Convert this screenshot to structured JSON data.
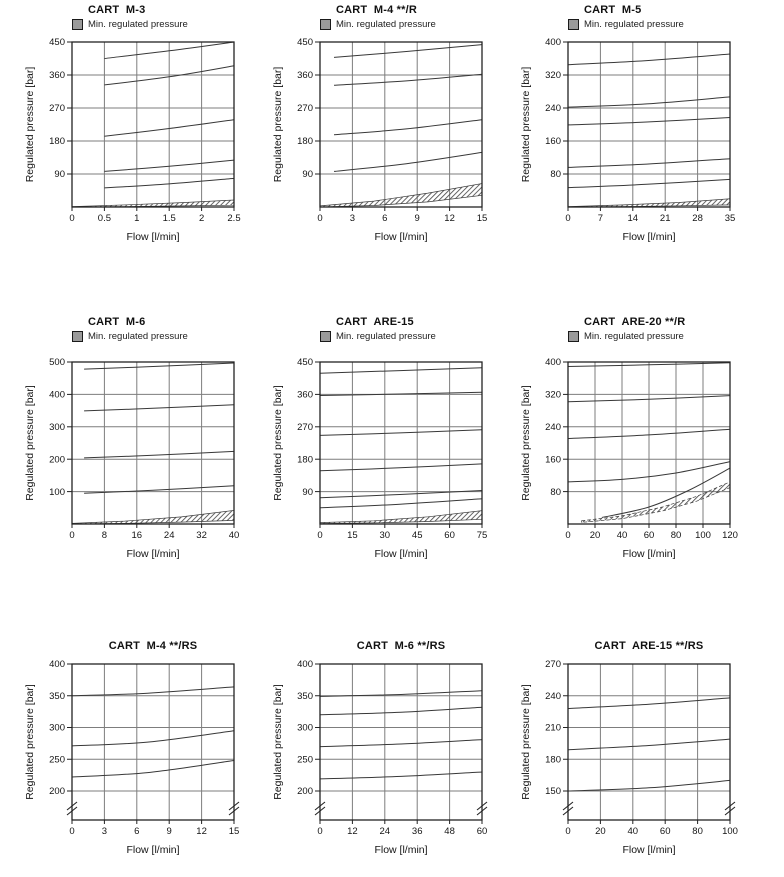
{
  "legend_swatch_color": "#9a9a9a",
  "axis_color": "#222222",
  "grid_color": "#7d7d7d",
  "curve_color": "#383838",
  "chart_data": [
    {
      "type": "line",
      "title": "CART  M-3",
      "legend": "Min. regulated pressure",
      "xlabel": "Flow [l/min]",
      "ylabel": "Regulated pressure [bar]",
      "xlim": [
        0,
        2.5
      ],
      "ylim": [
        0,
        450
      ],
      "x_ticks": [
        0,
        0.5,
        1,
        1.5,
        2,
        2.5
      ],
      "x_tick_labels": [
        "0",
        "0.5",
        "1",
        "1.5",
        "2",
        "2.5"
      ],
      "y_ticks": [
        90,
        180,
        270,
        360,
        450
      ],
      "grid": true,
      "axis_break": false,
      "curves": [
        {
          "x": [
            0.5,
            1.5,
            2.5
          ],
          "y": [
            405,
            426,
            450
          ]
        },
        {
          "x": [
            0.5,
            1.5,
            2.5
          ],
          "y": [
            333,
            355,
            385
          ]
        },
        {
          "x": [
            0.5,
            1.5,
            2.5
          ],
          "y": [
            193,
            214,
            238
          ]
        },
        {
          "x": [
            0.5,
            1.5,
            2.5
          ],
          "y": [
            97,
            111,
            128
          ]
        },
        {
          "x": [
            0.5,
            1.5,
            2.5
          ],
          "y": [
            52,
            63,
            78
          ]
        }
      ],
      "min_band": {
        "x": [
          0,
          0.85,
          1.7,
          2.5
        ],
        "top": [
          1,
          6,
          12,
          19
        ],
        "bottom": [
          0,
          1,
          3,
          5
        ],
        "dashed": false
      }
    },
    {
      "type": "line",
      "title": "CART  M-4 **/R",
      "legend": "Min. regulated pressure",
      "xlabel": "Flow [l/min]",
      "ylabel": "Regulated pressure [bar]",
      "xlim": [
        0,
        15
      ],
      "ylim": [
        0,
        450
      ],
      "x_ticks": [
        0,
        3,
        6,
        9,
        12,
        15
      ],
      "x_tick_labels": [
        "0",
        "3",
        "6",
        "9",
        "12",
        "15"
      ],
      "y_ticks": [
        90,
        180,
        270,
        360,
        450
      ],
      "grid": true,
      "axis_break": false,
      "curves": [
        {
          "x": [
            1.3,
            8,
            15
          ],
          "y": [
            408,
            424,
            443
          ]
        },
        {
          "x": [
            1.3,
            8,
            15
          ],
          "y": [
            332,
            344,
            362
          ]
        },
        {
          "x": [
            1.3,
            8,
            15
          ],
          "y": [
            197,
            213,
            238
          ]
        },
        {
          "x": [
            1.3,
            8,
            15
          ],
          "y": [
            97,
            118,
            149
          ]
        }
      ],
      "min_band": {
        "x": [
          0,
          5,
          10,
          15
        ],
        "top": [
          3,
          16,
          38,
          64
        ],
        "bottom": [
          0,
          4,
          14,
          32
        ],
        "dashed": false
      }
    },
    {
      "type": "line",
      "title": "CART  M-5",
      "legend": "Min. regulated pressure",
      "xlabel": "Flow [l/min]",
      "ylabel": "Regulated pressure [bar]",
      "xlim": [
        0,
        35
      ],
      "ylim": [
        0,
        400
      ],
      "x_ticks": [
        0,
        7,
        14,
        21,
        28,
        35
      ],
      "x_tick_labels": [
        "0",
        "7",
        "14",
        "21",
        "28",
        "35"
      ],
      "y_ticks": [
        80,
        160,
        240,
        320,
        400
      ],
      "grid": true,
      "axis_break": false,
      "curves": [
        {
          "x": [
            0,
            17,
            35
          ],
          "y": [
            345,
            355,
            371
          ]
        },
        {
          "x": [
            0,
            17,
            35
          ],
          "y": [
            242,
            250,
            267
          ]
        },
        {
          "x": [
            0,
            17,
            35
          ],
          "y": [
            199,
            206,
            217
          ]
        },
        {
          "x": [
            0,
            17,
            35
          ],
          "y": [
            96,
            104,
            117
          ]
        },
        {
          "x": [
            0,
            17,
            35
          ],
          "y": [
            47,
            55,
            67
          ]
        }
      ],
      "min_band": {
        "x": [
          0,
          12,
          24,
          35
        ],
        "top": [
          1,
          5,
          11,
          20
        ],
        "bottom": [
          0,
          1,
          3,
          5
        ],
        "dashed": false
      }
    },
    {
      "type": "line",
      "title": "CART  M-6",
      "legend": "Min. regulated pressure",
      "xlabel": "Flow [l/min]",
      "ylabel": "Regulated pressure [bar]",
      "xlim": [
        0,
        40
      ],
      "ylim": [
        0,
        500
      ],
      "x_ticks": [
        0,
        8,
        16,
        24,
        32,
        40
      ],
      "x_tick_labels": [
        "0",
        "8",
        "16",
        "24",
        "32",
        "40"
      ],
      "y_ticks": [
        100,
        200,
        300,
        400,
        500
      ],
      "grid": true,
      "axis_break": false,
      "curves": [
        {
          "x": [
            3,
            20,
            40
          ],
          "y": [
            478,
            486,
            497
          ]
        },
        {
          "x": [
            3,
            20,
            40
          ],
          "y": [
            349,
            357,
            368
          ]
        },
        {
          "x": [
            3,
            20,
            40
          ],
          "y": [
            204,
            212,
            224
          ]
        },
        {
          "x": [
            3,
            20,
            40
          ],
          "y": [
            95,
            104,
            118
          ]
        }
      ],
      "min_band": {
        "x": [
          0,
          13,
          27,
          40
        ],
        "top": [
          2,
          9,
          22,
          42
        ],
        "bottom": [
          0,
          2,
          6,
          11
        ],
        "dashed": false
      }
    },
    {
      "type": "line",
      "title": "CART  ARE-15",
      "legend": "Min. regulated pressure",
      "xlabel": "Flow [l/min]",
      "ylabel": "Regulated pressure [bar]",
      "xlim": [
        0,
        75
      ],
      "ylim": [
        0,
        450
      ],
      "x_ticks": [
        0,
        15,
        30,
        45,
        60,
        75
      ],
      "x_tick_labels": [
        "0",
        "15",
        "30",
        "45",
        "60",
        "75"
      ],
      "y_ticks": [
        90,
        180,
        270,
        360,
        450
      ],
      "grid": true,
      "axis_break": false,
      "curves": [
        {
          "x": [
            0,
            37,
            75
          ],
          "y": [
            419,
            426,
            434
          ]
        },
        {
          "x": [
            0,
            37,
            75
          ],
          "y": [
            357,
            361,
            366
          ]
        },
        {
          "x": [
            0,
            37,
            75
          ],
          "y": [
            246,
            253,
            262
          ]
        },
        {
          "x": [
            0,
            37,
            75
          ],
          "y": [
            148,
            156,
            167
          ]
        },
        {
          "x": [
            0,
            37,
            75
          ],
          "y": [
            73,
            82,
            93
          ]
        },
        {
          "x": [
            0,
            37,
            75
          ],
          "y": [
            45,
            55,
            70
          ]
        }
      ],
      "min_band": {
        "x": [
          0,
          25,
          50,
          75
        ],
        "top": [
          4,
          9,
          20,
          37
        ],
        "bottom": [
          1,
          3,
          7,
          13
        ],
        "dashed": false
      }
    },
    {
      "type": "line",
      "title": "CART  ARE-20 **/R",
      "legend": "Min. regulated pressure",
      "xlabel": "Flow [l/min]",
      "ylabel": "Regulated pressure [bar]",
      "xlim": [
        0,
        120
      ],
      "ylim": [
        0,
        400
      ],
      "x_ticks": [
        0,
        20,
        40,
        60,
        80,
        100,
        120
      ],
      "x_tick_labels": [
        "0",
        "20",
        "40",
        "60",
        "80",
        "100",
        "120"
      ],
      "y_ticks": [
        80,
        160,
        240,
        320,
        400
      ],
      "grid": true,
      "axis_break": false,
      "curves": [
        {
          "x": [
            0,
            60,
            120
          ],
          "y": [
            389,
            393,
            398
          ]
        },
        {
          "x": [
            0,
            60,
            120
          ],
          "y": [
            302,
            308,
            317
          ]
        },
        {
          "x": [
            0,
            60,
            120
          ],
          "y": [
            211,
            220,
            234
          ]
        },
        {
          "x": [
            0,
            40,
            80,
            120
          ],
          "y": [
            104,
            110,
            126,
            154
          ]
        },
        {
          "x": [
            25,
            60,
            90,
            120
          ],
          "y": [
            16,
            42,
            84,
            138
          ]
        }
      ],
      "min_band": {
        "x": [
          10,
          40,
          70,
          95,
          120
        ],
        "top": [
          8,
          20,
          42,
          68,
          104
        ],
        "bottom": [
          4,
          13,
          32,
          56,
          90
        ],
        "dashed": true
      }
    },
    {
      "type": "line",
      "title": "CART  M-4 **/RS",
      "xlabel": "Flow [l/min]",
      "ylabel": "Regulated pressure [bar]",
      "xlim": [
        0,
        15
      ],
      "ylim": [
        200,
        400
      ],
      "x_ticks": [
        0,
        3,
        6,
        9,
        12,
        15
      ],
      "x_tick_labels": [
        "0",
        "3",
        "6",
        "9",
        "12",
        "15"
      ],
      "y_ticks": [
        200,
        250,
        300,
        350,
        400
      ],
      "grid": true,
      "axis_break": true,
      "curves": [
        {
          "x": [
            0,
            7,
            15
          ],
          "y": [
            350,
            354,
            364
          ]
        },
        {
          "x": [
            0,
            7,
            15
          ],
          "y": [
            271,
            277,
            295
          ]
        },
        {
          "x": [
            0,
            7,
            15
          ],
          "y": [
            222,
            229,
            248
          ]
        }
      ]
    },
    {
      "type": "line",
      "title": "CART  M-6 **/RS",
      "xlabel": "Flow [l/min]",
      "ylabel": "Regulated pressure [bar]",
      "xlim": [
        0,
        60
      ],
      "ylim": [
        200,
        400
      ],
      "x_ticks": [
        0,
        12,
        24,
        36,
        48,
        60
      ],
      "x_tick_labels": [
        "0",
        "12",
        "24",
        "36",
        "48",
        "60"
      ],
      "y_ticks": [
        200,
        250,
        300,
        350,
        400
      ],
      "grid": true,
      "axis_break": true,
      "curves": [
        {
          "x": [
            0,
            30,
            60
          ],
          "y": [
            349,
            352,
            358
          ]
        },
        {
          "x": [
            0,
            30,
            60
          ],
          "y": [
            320,
            324,
            332
          ]
        },
        {
          "x": [
            0,
            30,
            60
          ],
          "y": [
            270,
            274,
            281
          ]
        },
        {
          "x": [
            0,
            30,
            60
          ],
          "y": [
            219,
            223,
            230
          ]
        }
      ]
    },
    {
      "type": "line",
      "title": "CART  ARE-15 **/RS",
      "xlabel": "Flow [l/min]",
      "ylabel": "Regulated pressure [bar]",
      "xlim": [
        0,
        100
      ],
      "ylim": [
        150,
        270
      ],
      "x_ticks": [
        0,
        20,
        40,
        60,
        80,
        100
      ],
      "x_tick_labels": [
        "0",
        "20",
        "40",
        "60",
        "80",
        "100"
      ],
      "y_ticks": [
        150,
        180,
        210,
        240,
        270
      ],
      "grid": true,
      "axis_break": true,
      "curves": [
        {
          "x": [
            0,
            50,
            100
          ],
          "y": [
            228,
            232,
            238
          ]
        },
        {
          "x": [
            0,
            50,
            100
          ],
          "y": [
            189,
            193,
            199
          ]
        },
        {
          "x": [
            0,
            50,
            100
          ],
          "y": [
            150,
            153,
            160
          ]
        }
      ]
    }
  ]
}
